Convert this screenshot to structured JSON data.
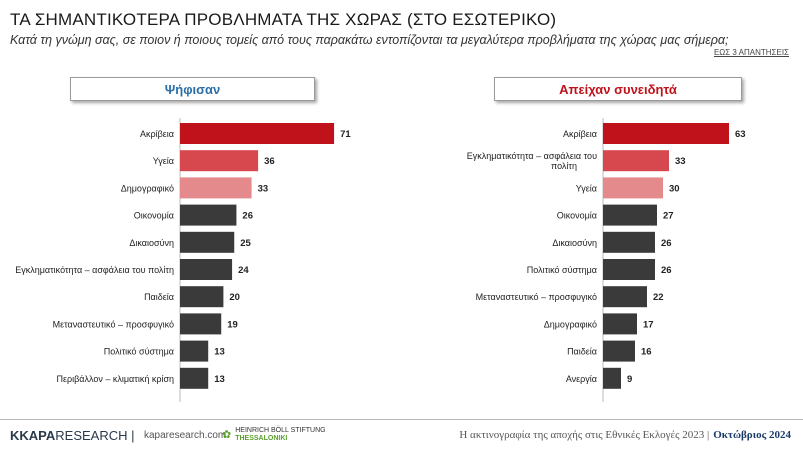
{
  "title": "ΤΑ ΣΗΜΑΝΤΙΚΟΤΕΡΑ ΠΡΟΒΛΗΜΑΤΑ ΤΗΣ ΧΩΡΑΣ (ΣΤΟ ΕΣΩΤΕΡΙΚΟ)",
  "subtitle": "Κατά τη γνώμη σας, σε ποιον ή ποιους τομείς από τους παρακάτω εντοπίζονται τα μεγαλύτερα προβλήματα της χώρας μας σήμερα;",
  "note": "ΕΩΣ 3 ΑΠΑΝΤΗΣΕΙΣ",
  "colors": {
    "dark_red": "#c0121b",
    "red": "#d7474e",
    "pink": "#e58a8c",
    "dark": "#3a3a3a"
  },
  "chart_data": [
    {
      "type": "bar",
      "orientation": "horizontal",
      "title": "Ψήφισαν",
      "categories": [
        "Ακρίβεια",
        "Υγεία",
        "Δημογραφικό",
        "Οικονομία",
        "Δικαιοσύνη",
        "Εγκληματικότητα – ασφάλεια του πολίτη",
        "Παιδεία",
        "Μεταναστευτικό – προσφυγικό",
        "Πολιτικό σύστημα",
        "Περιβάλλον – κλιματική κρίση"
      ],
      "values": [
        71,
        36,
        33,
        26,
        25,
        24,
        20,
        19,
        13,
        13
      ],
      "bar_colors": [
        "#c0121b",
        "#d7474e",
        "#e58a8c",
        "#3a3a3a",
        "#3a3a3a",
        "#3a3a3a",
        "#3a3a3a",
        "#3a3a3a",
        "#3a3a3a",
        "#3a3a3a"
      ],
      "xlim": [
        0,
        100
      ],
      "grid": false
    },
    {
      "type": "bar",
      "orientation": "horizontal",
      "title": "Απείχαν συνειδητά",
      "categories": [
        "Ακρίβεια",
        "Εγκληματικότητα – ασφάλεια του πολίτη",
        "Υγεία",
        "Οικονομία",
        "Δικαιοσύνη",
        "Πολιτικό σύστημα",
        "Μεταναστευτικό – προσφυγικό",
        "Δημογραφικό",
        "Παιδεία",
        "Ανεργία"
      ],
      "values": [
        63,
        33,
        30,
        27,
        26,
        26,
        22,
        17,
        16,
        9
      ],
      "bar_colors": [
        "#c0121b",
        "#d7474e",
        "#e58a8c",
        "#3a3a3a",
        "#3a3a3a",
        "#3a3a3a",
        "#3a3a3a",
        "#3a3a3a",
        "#3a3a3a",
        "#3a3a3a"
      ],
      "xlim": [
        0,
        100
      ],
      "grid": false
    }
  ],
  "footer": {
    "logo_k": "K",
    "logo_kapa": "KAPA",
    "logo_research": " RESEARCH |",
    "site": "kaparesearch.com",
    "hbs_line1": "HEINRICH BÖLL STIFTUNG",
    "hbs_line2": "THESSALONIKI",
    "caption": "Η ακτινογραφία της αποχής στις Εθνικές Εκλογές 2023 |",
    "date": "Οκτώβριος 2024"
  }
}
